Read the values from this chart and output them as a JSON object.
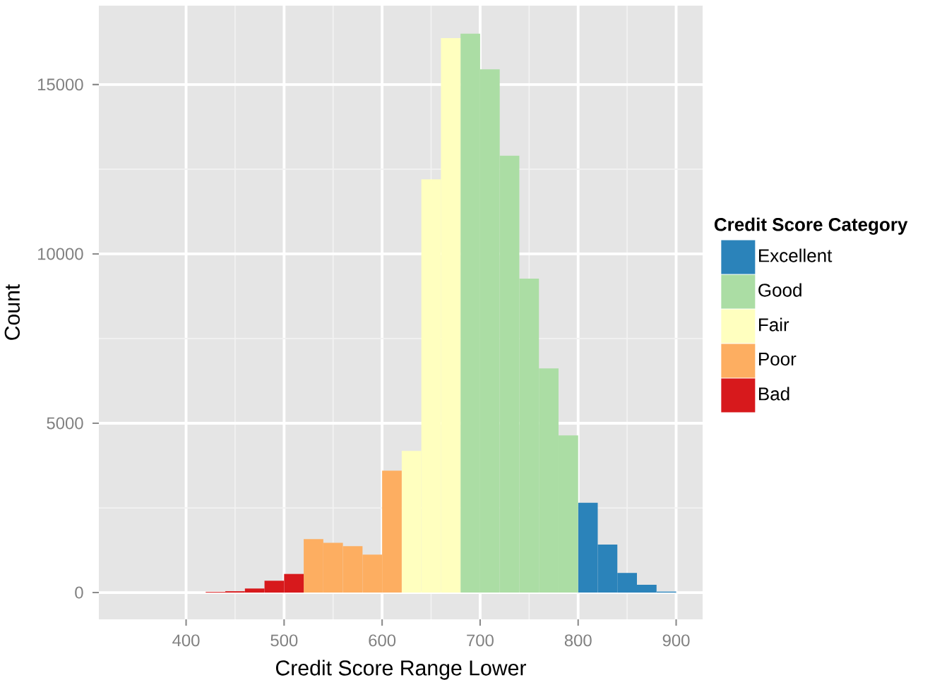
{
  "chart_data": {
    "type": "histogram",
    "xlabel": "Credit Score Range Lower",
    "ylabel": "Count",
    "legend_title": "Credit Score Category",
    "bins": [
      420,
      440,
      460,
      480,
      500,
      520,
      540,
      560,
      580,
      600,
      620,
      640,
      660,
      680,
      700,
      720,
      740,
      760,
      780,
      800,
      820,
      840,
      860,
      880,
      900
    ],
    "series": [
      {
        "name": "Excellent",
        "color": "#2b83ba",
        "values": [
          null,
          null,
          null,
          null,
          null,
          null,
          null,
          null,
          null,
          null,
          null,
          null,
          null,
          null,
          null,
          null,
          null,
          null,
          null,
          2650,
          1420,
          580,
          230,
          30
        ]
      },
      {
        "name": "Good",
        "color": "#abdda4",
        "values": [
          null,
          null,
          null,
          null,
          null,
          null,
          null,
          null,
          null,
          null,
          null,
          null,
          null,
          16500,
          15450,
          12900,
          9270,
          6620,
          4640,
          null,
          null,
          null,
          null,
          null
        ]
      },
      {
        "name": "Fair",
        "color": "#ffffbf",
        "values": [
          null,
          null,
          null,
          null,
          null,
          null,
          null,
          null,
          null,
          null,
          4180,
          12200,
          16370,
          null,
          null,
          null,
          null,
          null,
          null,
          null,
          null,
          null,
          null,
          null
        ]
      },
      {
        "name": "Poor",
        "color": "#fdae61",
        "values": [
          null,
          null,
          null,
          null,
          null,
          1580,
          1470,
          1370,
          1120,
          3600,
          null,
          null,
          null,
          null,
          null,
          null,
          null,
          null,
          null,
          null,
          null,
          null,
          null,
          null
        ]
      },
      {
        "name": "Bad",
        "color": "#d7191c",
        "values": [
          20,
          40,
          120,
          350,
          550,
          null,
          null,
          null,
          null,
          null,
          null,
          null,
          null,
          null,
          null,
          null,
          null,
          null,
          null,
          null,
          null,
          null,
          null,
          null
        ]
      }
    ],
    "xlim": [
      311,
      927
    ],
    "ylim": [
      -790,
      17330
    ],
    "xticks": [
      400,
      500,
      600,
      700,
      800,
      900
    ],
    "yticks": [
      0,
      5000,
      10000,
      15000
    ],
    "grid": true,
    "legend": "right"
  }
}
